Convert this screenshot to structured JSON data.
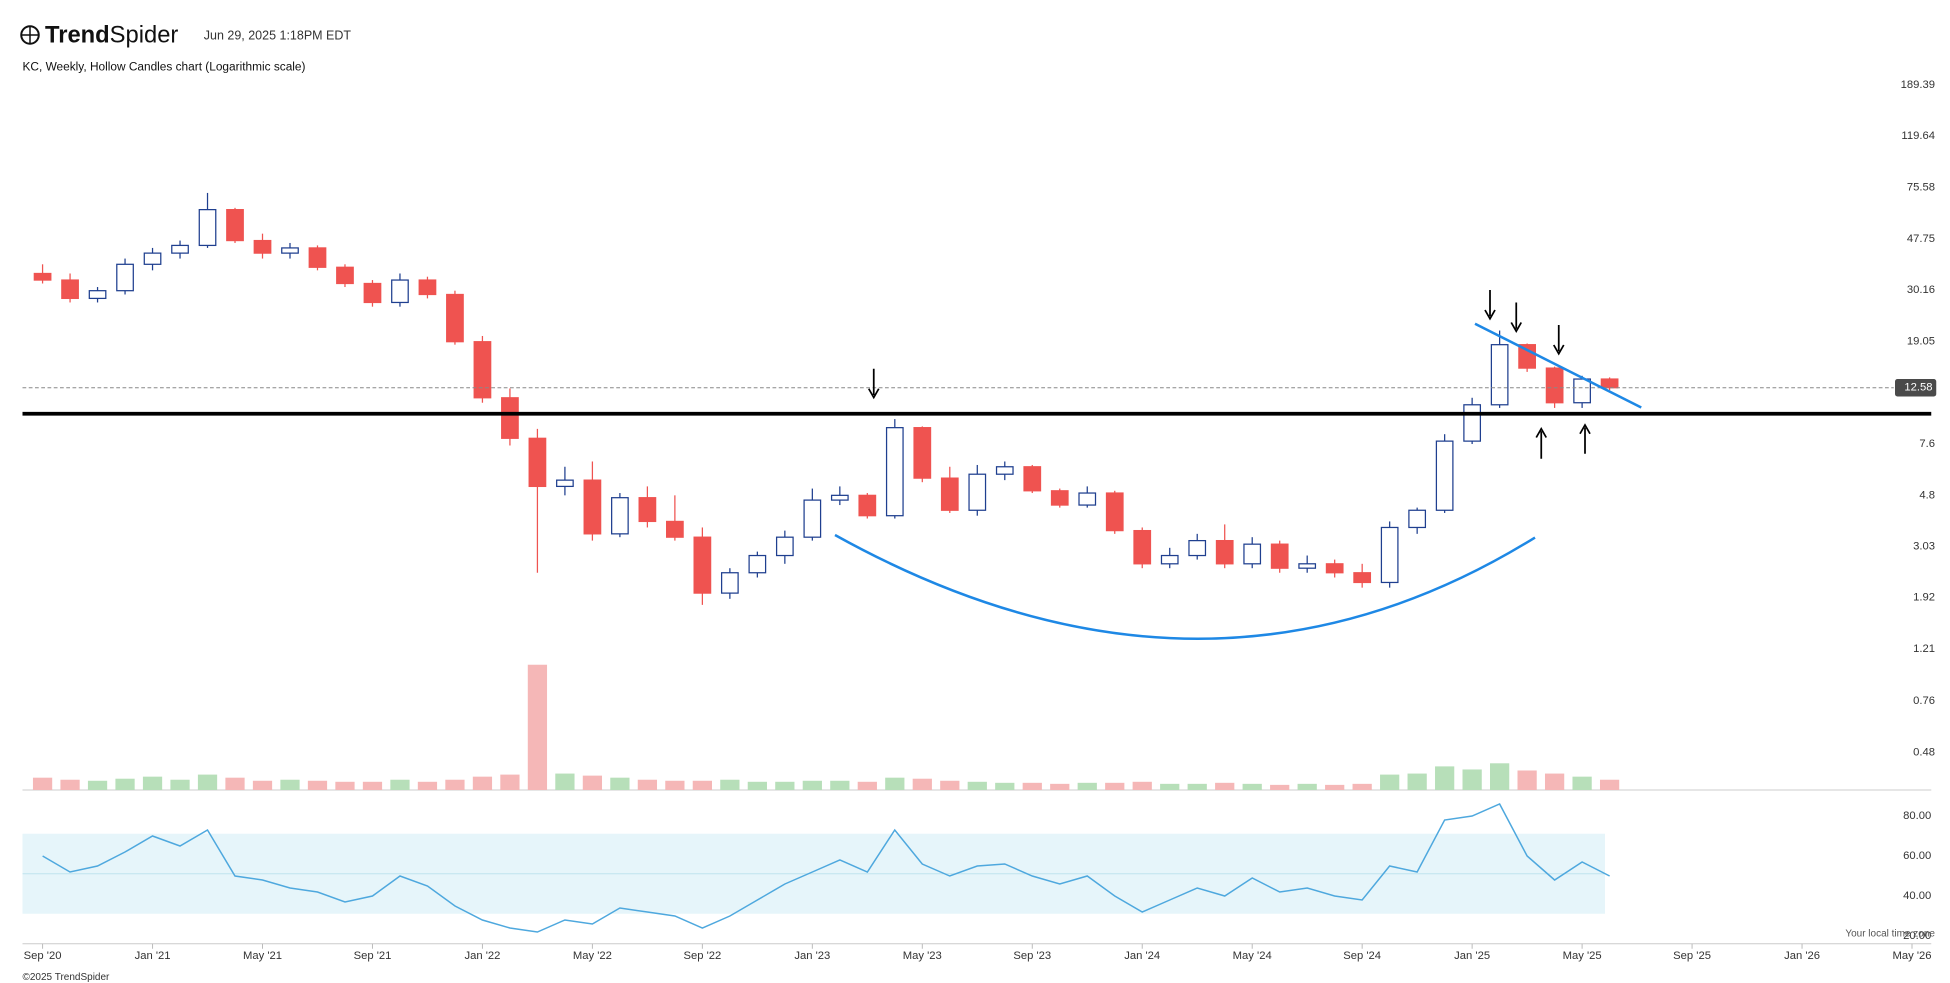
{
  "header": {
    "brand_bold": "Trend",
    "brand_light": "Spider",
    "timestamp": "Jun 29, 2025 1:18PM EDT"
  },
  "chart_data": [
    {
      "type": "candlestick",
      "title": "KC, Weekly, Hollow Candles chart (Logarithmic scale)",
      "log_scale": true,
      "x": [
        0,
        1,
        2,
        3,
        4,
        5,
        6,
        7,
        8,
        9,
        10,
        11,
        12,
        13,
        14,
        15,
        16,
        17,
        18,
        19,
        20,
        21,
        22,
        23,
        24,
        25,
        26,
        27,
        28,
        29,
        30,
        31,
        32,
        33,
        34,
        35,
        36,
        37,
        38,
        39,
        40,
        41,
        42,
        43,
        44,
        45,
        46,
        47,
        48,
        49,
        50,
        51,
        52,
        53,
        54,
        55,
        56,
        57
      ],
      "open": [
        35,
        33,
        28,
        30,
        38,
        42,
        45,
        62,
        47,
        42,
        44,
        37,
        32,
        27,
        33,
        29,
        19,
        11.5,
        8,
        5.2,
        5.5,
        3.4,
        4.7,
        3.8,
        3.3,
        2.0,
        2.4,
        2.8,
        3.3,
        4.6,
        4.8,
        4.0,
        8.8,
        5.6,
        4.2,
        5.8,
        6.2,
        5.0,
        4.4,
        4.9,
        3.5,
        2.6,
        2.8,
        3.2,
        2.6,
        3.1,
        2.5,
        2.6,
        2.4,
        2.2,
        3.6,
        4.2,
        7.8,
        10.8,
        18.5,
        15,
        11,
        13.6
      ],
      "high": [
        38,
        35,
        31,
        40,
        44,
        47,
        72,
        63,
        50,
        46,
        45,
        38,
        33,
        35,
        34,
        30,
        20,
        12.5,
        8.7,
        6.2,
        6.5,
        4.9,
        5.2,
        4.8,
        3.6,
        2.5,
        2.9,
        3.5,
        5.1,
        5.2,
        4.9,
        9.5,
        8.9,
        6.2,
        6.3,
        6.5,
        6.3,
        5.1,
        5.2,
        5.0,
        3.6,
        3.0,
        3.4,
        3.7,
        3.3,
        3.2,
        2.8,
        2.7,
        2.6,
        3.8,
        4.3,
        8.3,
        11.5,
        21,
        18.7,
        15.2,
        14,
        13.8
      ],
      "low": [
        32,
        27,
        27,
        29,
        36,
        40,
        44,
        46,
        40,
        40,
        36,
        31,
        26,
        26,
        28,
        18.5,
        11,
        7.5,
        2.4,
        4.8,
        3.2,
        3.3,
        3.6,
        3.2,
        1.8,
        1.9,
        2.3,
        2.6,
        3.2,
        4.4,
        3.9,
        3.9,
        5.4,
        4.1,
        4.0,
        5.5,
        4.9,
        4.3,
        4.3,
        3.4,
        2.5,
        2.5,
        2.7,
        2.5,
        2.5,
        2.4,
        2.4,
        2.3,
        2.1,
        2.1,
        3.4,
        4.1,
        7.6,
        10.5,
        14.5,
        10.5,
        10.5,
        12.3
      ],
      "close": [
        33,
        28,
        30,
        38,
        42,
        45,
        62,
        47,
        42,
        44,
        37,
        32,
        27,
        33,
        29,
        19,
        11.5,
        8,
        5.2,
        5.5,
        3.4,
        4.7,
        3.8,
        3.3,
        2.0,
        2.4,
        2.8,
        3.3,
        4.6,
        4.8,
        4.0,
        8.8,
        5.6,
        4.2,
        5.8,
        6.2,
        5.0,
        4.4,
        4.9,
        3.5,
        2.6,
        2.8,
        3.2,
        2.6,
        3.1,
        2.5,
        2.6,
        2.4,
        2.2,
        3.6,
        4.2,
        7.8,
        10.8,
        18.5,
        15,
        11,
        13.6,
        12.58
      ],
      "up_color": "#1f3f8f",
      "down_color": "#ef5350",
      "xlim": [
        -0.73,
        68.7
      ],
      "xticks": [
        {
          "value": 0,
          "label": "Sep '20"
        },
        {
          "value": 4,
          "label": "Jan '21"
        },
        {
          "value": 8,
          "label": "May '21"
        },
        {
          "value": 12,
          "label": "Sep '21"
        },
        {
          "value": 16,
          "label": "Jan '22"
        },
        {
          "value": 20,
          "label": "May '22"
        },
        {
          "value": 24,
          "label": "Sep '22"
        },
        {
          "value": 28,
          "label": "Jan '23"
        },
        {
          "value": 32,
          "label": "May '23"
        },
        {
          "value": 36,
          "label": "Sep '23"
        },
        {
          "value": 40,
          "label": "Jan '24"
        },
        {
          "value": 44,
          "label": "May '24"
        },
        {
          "value": 48,
          "label": "Sep '24"
        },
        {
          "value": 52,
          "label": "Jan '25"
        },
        {
          "value": 56,
          "label": "May '25"
        },
        {
          "value": 60,
          "label": "Sep '25"
        },
        {
          "value": 64,
          "label": "Jan '26"
        },
        {
          "value": 68,
          "label": "May '26"
        }
      ],
      "ylim": [
        0.343,
        207
      ],
      "yticks": [
        189.39,
        119.64,
        75.58,
        47.75,
        30.16,
        19.05,
        7.6,
        4.8,
        3.03,
        1.92,
        1.21,
        0.76,
        0.48
      ]
    },
    {
      "type": "bar",
      "x": [
        0,
        1,
        2,
        3,
        4,
        5,
        6,
        7,
        8,
        9,
        10,
        11,
        12,
        13,
        14,
        15,
        16,
        17,
        18,
        19,
        20,
        21,
        22,
        23,
        24,
        25,
        26,
        27,
        28,
        29,
        30,
        31,
        32,
        33,
        34,
        35,
        36,
        37,
        38,
        39,
        40,
        41,
        42,
        43,
        44,
        45,
        46,
        47,
        48,
        49,
        50,
        51,
        52,
        53,
        54,
        55,
        56,
        57
      ],
      "values": [
        1.2,
        1.0,
        0.9,
        1.1,
        1.3,
        1.0,
        1.5,
        1.2,
        0.9,
        1.0,
        0.9,
        0.8,
        0.8,
        1.0,
        0.8,
        1.0,
        1.3,
        1.5,
        12.2,
        1.6,
        1.4,
        1.2,
        1.0,
        0.9,
        0.9,
        1.0,
        0.8,
        0.8,
        0.9,
        0.9,
        0.8,
        1.2,
        1.1,
        0.9,
        0.8,
        0.7,
        0.7,
        0.6,
        0.7,
        0.7,
        0.8,
        0.6,
        0.6,
        0.7,
        0.6,
        0.5,
        0.6,
        0.5,
        0.6,
        1.5,
        1.6,
        2.3,
        2.0,
        2.6,
        1.9,
        1.6,
        1.3,
        1.0
      ],
      "up_color": "#b7dfb9",
      "down_color": "#f5b7b7",
      "ylim": [
        0,
        14
      ]
    },
    {
      "type": "line",
      "x": [
        0,
        1,
        2,
        3,
        4,
        5,
        6,
        7,
        8,
        9,
        10,
        11,
        12,
        13,
        14,
        15,
        16,
        17,
        18,
        19,
        20,
        21,
        22,
        23,
        24,
        25,
        26,
        27,
        28,
        29,
        30,
        31,
        32,
        33,
        34,
        35,
        36,
        37,
        38,
        39,
        40,
        41,
        42,
        43,
        44,
        45,
        46,
        47,
        48,
        49,
        50,
        51,
        52,
        53,
        54,
        55,
        56,
        57
      ],
      "values": [
        60,
        52,
        55,
        62,
        70,
        65,
        73,
        50,
        48,
        44,
        42,
        37,
        40,
        50,
        45,
        35,
        28,
        24,
        22,
        28,
        26,
        34,
        32,
        30,
        24,
        30,
        38,
        46,
        52,
        58,
        52,
        73,
        56,
        50,
        55,
        56,
        50,
        46,
        50,
        40,
        32,
        38,
        44,
        40,
        49,
        42,
        44,
        40,
        38,
        55,
        52,
        78,
        80,
        86,
        60,
        48,
        57,
        50
      ],
      "color": "#4ea8de",
      "ylim": [
        16,
        88
      ],
      "yticks": [
        {
          "value": 80,
          "label": "80.00"
        },
        {
          "value": 60,
          "label": "60.00"
        },
        {
          "value": 40,
          "label": "40.00"
        },
        {
          "value": 20,
          "label": "20.00"
        }
      ]
    }
  ],
  "footer": {
    "timezone_note": "Your local time zone",
    "copyright": "©2025 TrendSpider"
  }
}
